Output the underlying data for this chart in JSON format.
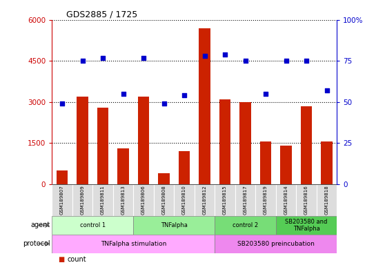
{
  "title": "GDS2885 / 1725",
  "samples": [
    "GSM189807",
    "GSM189809",
    "GSM189811",
    "GSM189813",
    "GSM189806",
    "GSM189808",
    "GSM189810",
    "GSM189812",
    "GSM189815",
    "GSM189817",
    "GSM189819",
    "GSM189814",
    "GSM189816",
    "GSM189818"
  ],
  "counts": [
    500,
    3200,
    2800,
    1300,
    3200,
    400,
    1200,
    5700,
    3100,
    3000,
    1550,
    1400,
    2850,
    1550
  ],
  "percentiles": [
    49,
    75,
    77,
    55,
    77,
    49,
    54,
    78,
    79,
    75,
    55,
    75,
    75,
    57
  ],
  "ylim_left": [
    0,
    6000
  ],
  "ylim_right": [
    0,
    100
  ],
  "yticks_left": [
    0,
    1500,
    3000,
    4500,
    6000
  ],
  "yticks_right": [
    0,
    25,
    50,
    75,
    100
  ],
  "agent_groups": [
    {
      "label": "control 1",
      "start": 0,
      "end": 3,
      "color": "#ccffcc"
    },
    {
      "label": "TNFalpha",
      "start": 4,
      "end": 7,
      "color": "#99ee99"
    },
    {
      "label": "control 2",
      "start": 8,
      "end": 10,
      "color": "#77dd77"
    },
    {
      "label": "SB203580 and\nTNFalpha",
      "start": 11,
      "end": 13,
      "color": "#55cc55"
    }
  ],
  "protocol_groups": [
    {
      "label": "TNFalpha stimulation",
      "start": 0,
      "end": 7,
      "color": "#ffaaff"
    },
    {
      "label": "SB203580 preincubation",
      "start": 8,
      "end": 13,
      "color": "#ee88ee"
    }
  ],
  "bar_color": "#cc2200",
  "scatter_color": "#0000cc",
  "background_color": "#ffffff",
  "sample_bg_color": "#dddddd",
  "left_label_color": "#cc0000",
  "right_label_color": "#0000cc"
}
